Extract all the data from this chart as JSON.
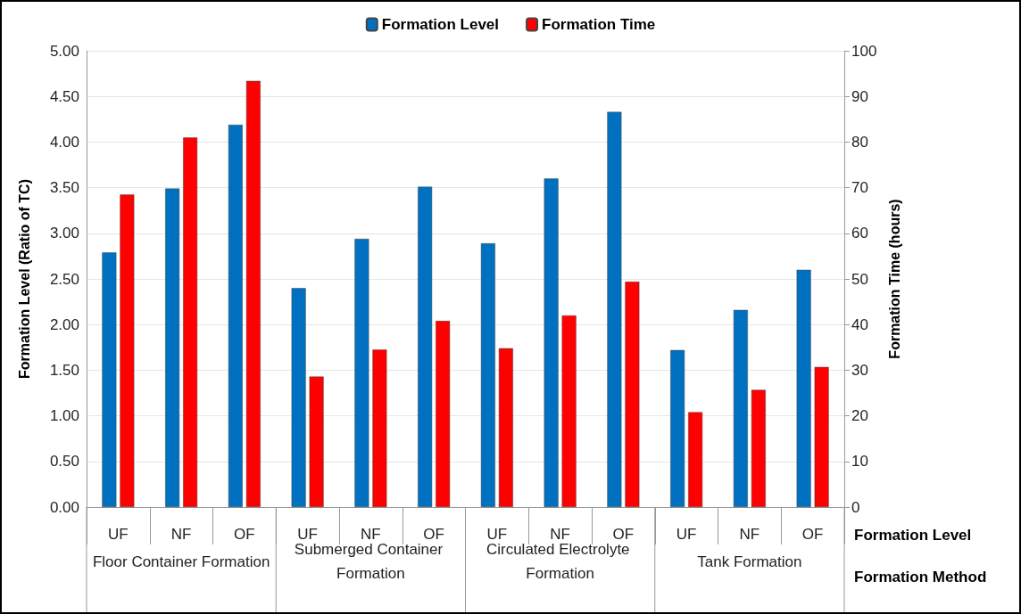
{
  "chart_data": {
    "type": "bar",
    "categories": [
      "UF",
      "NF",
      "OF",
      "UF",
      "NF",
      "OF",
      "UF",
      "NF",
      "OF",
      "UF",
      "NF",
      "OF"
    ],
    "xlabel": "Formation Level",
    "ylabel": "Formation Level (Ratio of TC)",
    "y2label": "Formation Time (hours)",
    "annotations": [
      "Floor Container Formation",
      "Submerged Container Formation",
      "Circulated Electrolyte Formation",
      "Tank Formation",
      "Formation Method"
    ],
    "series": [
      {
        "name": "Formation Level",
        "color": "#0070c0",
        "values": [
          2.79,
          3.49,
          4.19,
          2.4,
          2.94,
          3.51,
          2.89,
          3.6,
          4.33,
          1.72,
          2.16,
          2.6
        ]
      },
      {
        "name": "Formation Time",
        "color": "#ff0000",
        "axis": "y2",
        "values": [
          68.5,
          81,
          93.4,
          28.6,
          34.5,
          40.8,
          34.8,
          42,
          49.4,
          20.8,
          25.7,
          30.7
        ]
      }
    ],
    "ylim": [
      0,
      5
    ],
    "yticks": [
      {
        "value": 0,
        "label": "0.00"
      },
      {
        "value": 0.5,
        "label": "0.50"
      },
      {
        "value": 1,
        "label": "1.00"
      },
      {
        "value": 1.5,
        "label": "1.50"
      },
      {
        "value": 2,
        "label": "2.00"
      },
      {
        "value": 2.5,
        "label": "2.50"
      },
      {
        "value": 3,
        "label": "3.00"
      },
      {
        "value": 3.5,
        "label": "3.50"
      },
      {
        "value": 4,
        "label": "4.00"
      },
      {
        "value": 4.5,
        "label": "4.50"
      },
      {
        "value": 5,
        "label": "5.00"
      }
    ],
    "y2lim": [
      0,
      100
    ],
    "y2ticks": [
      0,
      10,
      20,
      30,
      40,
      50,
      60,
      70,
      80,
      90,
      100
    ],
    "grid": "y",
    "legend": "top"
  }
}
